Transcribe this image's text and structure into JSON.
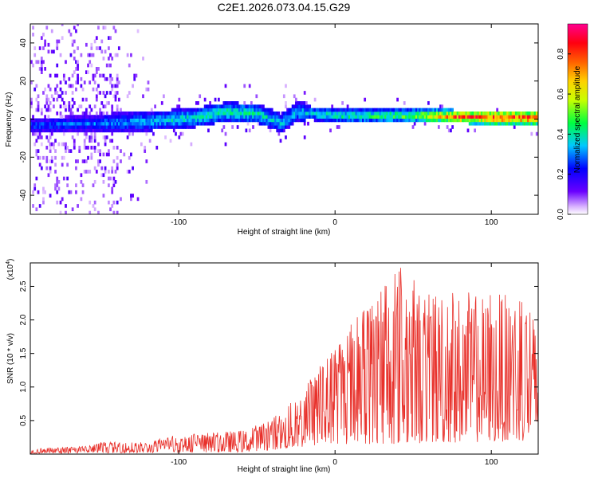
{
  "title": "C2E1.2026.073.04.15.G29",
  "chart_data": [
    {
      "type": "heatmap",
      "xlabel": "Height of straight line (km)",
      "ylabel": "Frequency (Hz)",
      "xlim": [
        -195,
        130
      ],
      "ylim": [
        -50,
        50
      ],
      "xticks": [
        -100,
        0,
        100
      ],
      "xtick_labels": [
        "-100",
        "0",
        "100"
      ],
      "yticks": [
        -40,
        -20,
        0,
        20,
        40
      ],
      "ytick_labels": [
        "-40",
        "-20",
        "0",
        "20",
        "40"
      ],
      "grid": false,
      "colorbar": {
        "label": "Normalized spectral amplitude",
        "range": [
          0.0,
          0.95
        ],
        "ticks": [
          0.0,
          0.2,
          0.4,
          0.6,
          0.8
        ],
        "tick_labels": [
          "0.0",
          "0.2",
          "0.4",
          "0.6",
          "0.8"
        ],
        "colormap": "rainbow (white-violet-blue-cyan-green-yellow-orange-red-magenta)"
      },
      "ridge": {
        "description": "Spectral energy concentrated near 0 Hz; broad scatter (±50 Hz) below -150 km, band narrows with height; amplitude rises to ~0.8-0.9 above +70 km",
        "center_freq_hz": [
          {
            "x": -190,
            "f": -4
          },
          {
            "x": -150,
            "f": -3
          },
          {
            "x": -120,
            "f": -2
          },
          {
            "x": -90,
            "f": 0
          },
          {
            "x": -70,
            "f": 3
          },
          {
            "x": -50,
            "f": 2
          },
          {
            "x": -35,
            "f": -3
          },
          {
            "x": -25,
            "f": 3
          },
          {
            "x": 0,
            "f": 1
          },
          {
            "x": 50,
            "f": 1
          },
          {
            "x": 100,
            "f": 0
          },
          {
            "x": 130,
            "f": 0
          }
        ],
        "amplitude": [
          {
            "x": -190,
            "a": 0.3
          },
          {
            "x": -150,
            "a": 0.32
          },
          {
            "x": -100,
            "a": 0.42
          },
          {
            "x": -60,
            "a": 0.45
          },
          {
            "x": -30,
            "a": 0.38
          },
          {
            "x": 0,
            "a": 0.45
          },
          {
            "x": 50,
            "a": 0.55
          },
          {
            "x": 80,
            "a": 0.85
          },
          {
            "x": 130,
            "a": 0.9
          }
        ]
      }
    },
    {
      "type": "line",
      "xlabel": "Height of straight line (km)",
      "ylabel": "SNR (10 * v/v)",
      "y_multiplier_label": "(x10",
      "y_multiplier_exponent": "4",
      "y_multiplier_close": ")",
      "xlim": [
        -195,
        130
      ],
      "ylim": [
        0,
        2.85
      ],
      "xticks": [
        -100,
        0,
        100
      ],
      "xtick_labels": [
        "-100",
        "0",
        "100"
      ],
      "yticks": [
        0.5,
        1.0,
        1.5,
        2.0,
        2.5
      ],
      "ytick_labels": [
        "0.5",
        "1.0",
        "1.5",
        "2.0",
        "2.5"
      ],
      "grid": false,
      "series": [
        {
          "name": "SNR",
          "color": "#e8302a",
          "envelope": [
            {
              "x": -195,
              "max": 0.08
            },
            {
              "x": -160,
              "max": 0.12
            },
            {
              "x": -150,
              "max": 0.18
            },
            {
              "x": -120,
              "max": 0.18
            },
            {
              "x": -100,
              "max": 0.3
            },
            {
              "x": -80,
              "max": 0.32
            },
            {
              "x": -60,
              "max": 0.35
            },
            {
              "x": -40,
              "max": 0.55
            },
            {
              "x": -30,
              "max": 0.72
            },
            {
              "x": -15,
              "max": 1.2
            },
            {
              "x": 0,
              "max": 1.65
            },
            {
              "x": 10,
              "max": 1.95
            },
            {
              "x": 20,
              "max": 2.35
            },
            {
              "x": 30,
              "max": 2.55
            },
            {
              "x": 40,
              "max": 2.85
            },
            {
              "x": 60,
              "max": 2.4
            },
            {
              "x": 80,
              "max": 2.45
            },
            {
              "x": 100,
              "max": 2.4
            },
            {
              "x": 120,
              "max": 2.35
            },
            {
              "x": 130,
              "max": 2.05
            }
          ],
          "floor": [
            {
              "x": -195,
              "min": 0.01
            },
            {
              "x": -60,
              "min": 0.03
            },
            {
              "x": -30,
              "min": 0.08
            },
            {
              "x": 0,
              "min": 0.15
            },
            {
              "x": 40,
              "min": 0.15
            },
            {
              "x": 130,
              "min": 0.2
            }
          ]
        }
      ]
    }
  ]
}
